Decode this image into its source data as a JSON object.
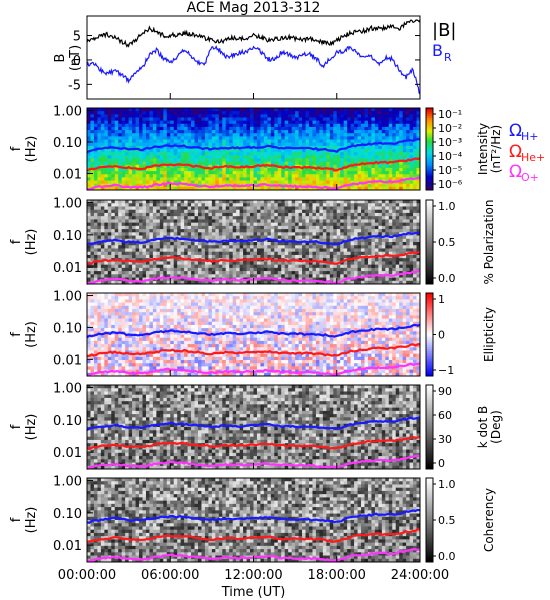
{
  "title": "ACE Mag 2013-312",
  "x_axis": {
    "label": "Time (UT)",
    "ticks": [
      "00:00:00",
      "06:00:00",
      "12:00:00",
      "18:00:00",
      "24:00:00"
    ],
    "range_hours": [
      0,
      24
    ]
  },
  "colors": {
    "B": "#000000",
    "BR": "#1a1aff",
    "H_plus": "#1a1aff",
    "He_plus": "#ff1a1a",
    "O_plus": "#ff33ff"
  },
  "legend_labels": {
    "B": "|B|",
    "BR_main": "B",
    "BR_sub": "R",
    "omega": "Ω",
    "H_sub": "H+",
    "He_sub": "He+",
    "O_sub": "O+"
  },
  "panels": [
    {
      "id": "field",
      "ylabel_main": "B",
      "ylabel_unit": "(nT)"
    },
    {
      "id": "intensity",
      "ylabel_main": "f",
      "ylabel_unit": "(Hz)",
      "colorbar_label_main": "Intensity",
      "colorbar_label_unit": "(nT²/Hz)",
      "colorbar_ticks": [
        "10⁻¹",
        "10⁻²",
        "10⁻³",
        "10⁻⁴",
        "10⁻⁵",
        "10⁻⁶"
      ]
    },
    {
      "id": "polarization",
      "ylabel_main": "f",
      "ylabel_unit": "(Hz)",
      "colorbar_label_main": "% Polarization",
      "colorbar_label_unit": "",
      "colorbar_ticks": [
        "1.0",
        "0.5",
        "0.0"
      ]
    },
    {
      "id": "ellipticity",
      "ylabel_main": "f",
      "ylabel_unit": "(Hz)",
      "colorbar_label_main": "Ellipticity",
      "colorbar_label_unit": "",
      "colorbar_ticks": [
        "1",
        "0",
        "−1"
      ]
    },
    {
      "id": "kdotb",
      "ylabel_main": "f",
      "ylabel_unit": "(Hz)",
      "colorbar_label_main": "k dot B",
      "colorbar_label_unit": "(Deg)",
      "colorbar_ticks": [
        "90",
        "60",
        "30",
        "0"
      ]
    },
    {
      "id": "coherency",
      "ylabel_main": "f",
      "ylabel_unit": "(Hz)",
      "colorbar_label_main": "Coherency",
      "colorbar_label_unit": "",
      "colorbar_ticks": [
        "1.0",
        "0.5",
        "0.0"
      ]
    }
  ],
  "freq_ticks": [
    "1.00",
    "0.10",
    "0.01"
  ],
  "chart_data": {
    "type": "line",
    "title": "ACE Mag 2013-312",
    "xlabel": "Time (UT)",
    "xlim_hours": [
      0,
      24
    ],
    "field_panel": {
      "ylabel": "B (nT)",
      "ylim": [
        -8,
        9
      ],
      "yticks": [
        5,
        0,
        -5
      ],
      "time_hours": [
        0,
        0.5,
        1,
        1.5,
        2,
        2.5,
        3,
        3.5,
        4,
        4.5,
        5,
        5.5,
        6,
        6.5,
        7,
        7.5,
        8,
        8.5,
        9,
        9.5,
        10,
        10.5,
        11,
        11.5,
        12,
        12.5,
        13,
        13.5,
        14,
        14.5,
        15,
        15.5,
        16,
        16.5,
        17,
        17.5,
        18,
        18.5,
        19,
        19.5,
        20,
        20.5,
        21,
        21.5,
        22,
        22.5,
        23,
        23.5,
        24
      ],
      "series": [
        {
          "name": "|B|",
          "values": [
            3.8,
            4.2,
            5.2,
            5.2,
            4.5,
            3.8,
            3.0,
            4.0,
            5.5,
            6.5,
            5.8,
            5.0,
            5.0,
            5.2,
            5.5,
            5.3,
            5.0,
            4.5,
            4.0,
            3.8,
            4.0,
            4.5,
            4.2,
            4.5,
            5.0,
            4.8,
            4.0,
            4.2,
            4.5,
            4.6,
            4.4,
            4.0,
            4.5,
            4.2,
            3.6,
            3.2,
            4.0,
            4.8,
            5.6,
            5.8,
            6.0,
            6.5,
            6.6,
            6.5,
            7.0,
            6.2,
            7.5,
            7.8,
            8.2
          ]
        },
        {
          "name": "B_R",
          "values": [
            -1.0,
            -0.8,
            -2.0,
            -2.8,
            -2.2,
            -3.0,
            -4.2,
            -2.5,
            -1.5,
            1.0,
            2.0,
            0.3,
            -0.5,
            0.5,
            2.0,
            0.8,
            -0.4,
            -0.8,
            2.8,
            2.2,
            0.5,
            1.0,
            1.5,
            1.8,
            2.5,
            1.8,
            0.2,
            0.0,
            1.5,
            1.2,
            0.3,
            0.8,
            1.5,
            0.3,
            -1.2,
            0.2,
            1.5,
            1.8,
            2.8,
            1.0,
            0.5,
            0.8,
            -1.0,
            0.5,
            0.2,
            -2.0,
            -3.5,
            -2.0,
            -7.0
          ]
        }
      ]
    },
    "spectrogram_overlays": {
      "ylabel": "f (Hz)",
      "scale": "log",
      "ylim": [
        0.003,
        1.2
      ],
      "time_hours": [
        0,
        1,
        2,
        3,
        4,
        5,
        6,
        7,
        8,
        9,
        10,
        11,
        12,
        13,
        14,
        15,
        16,
        17,
        18,
        19,
        20,
        21,
        22,
        23,
        24
      ],
      "series": [
        {
          "name": "Ω_H+",
          "values": [
            0.05,
            0.062,
            0.068,
            0.06,
            0.058,
            0.07,
            0.078,
            0.074,
            0.066,
            0.06,
            0.066,
            0.064,
            0.068,
            0.072,
            0.064,
            0.062,
            0.062,
            0.058,
            0.052,
            0.072,
            0.082,
            0.09,
            0.088,
            0.105,
            0.12
          ]
        },
        {
          "name": "Ω_He+",
          "values": [
            0.0125,
            0.0155,
            0.017,
            0.015,
            0.0145,
            0.0175,
            0.0195,
            0.0185,
            0.0165,
            0.015,
            0.0165,
            0.016,
            0.017,
            0.018,
            0.016,
            0.0155,
            0.0155,
            0.0145,
            0.013,
            0.018,
            0.0205,
            0.0225,
            0.022,
            0.026,
            0.03
          ]
        },
        {
          "name": "Ω_O+",
          "values": [
            0.0031,
            0.0039,
            0.0042,
            0.0038,
            0.0036,
            0.0044,
            0.0049,
            0.0046,
            0.0041,
            0.0038,
            0.0041,
            0.004,
            0.0042,
            0.0045,
            0.004,
            0.0039,
            0.0039,
            0.0036,
            0.0033,
            0.0045,
            0.0051,
            0.0056,
            0.0055,
            0.0066,
            0.0075
          ]
        }
      ]
    },
    "colorbars": [
      {
        "panel": "intensity",
        "scale": "log",
        "range": [
          1e-06,
          0.2
        ],
        "colormap": "rainbow"
      },
      {
        "panel": "polarization",
        "range": [
          0,
          1
        ],
        "colormap": "grayscale"
      },
      {
        "panel": "ellipticity",
        "range": [
          -1,
          1
        ],
        "colormap": "blue-white-red"
      },
      {
        "panel": "kdotb",
        "range": [
          0,
          90
        ],
        "colormap": "grayscale"
      },
      {
        "panel": "coherency",
        "range": [
          0,
          1
        ],
        "colormap": "grayscale"
      }
    ]
  }
}
